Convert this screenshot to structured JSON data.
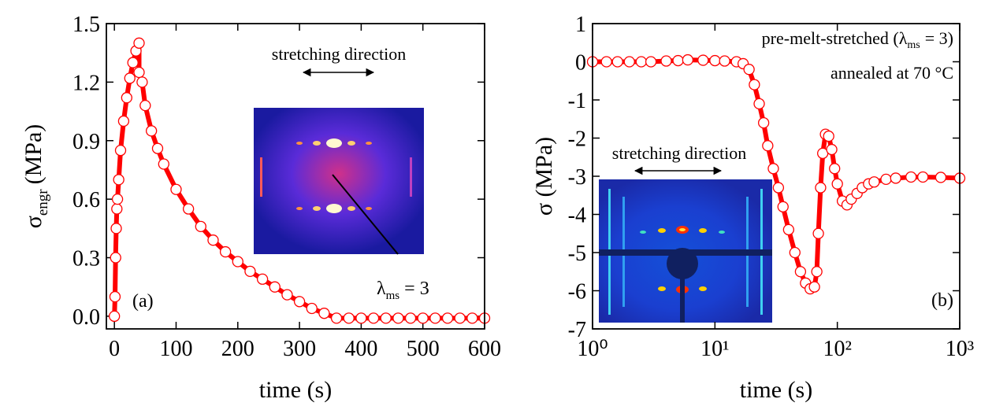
{
  "chart_data": [
    {
      "type": "scatter",
      "marker": "open-circle",
      "color": "#ff0000",
      "xlabel": "time (s)",
      "ylabel": {
        "symbol": "σ",
        "subscript": "engr",
        "unit": "(MPa)"
      },
      "panel_label": "(a)",
      "inset_label": "stretching direction",
      "note": {
        "symbol": "λ",
        "subscript": "ms",
        "text": "= 3"
      },
      "xlim": [
        -13,
        600
      ],
      "ylim": [
        -0.065,
        1.5
      ],
      "xticks": [
        0,
        100,
        200,
        300,
        400,
        500,
        600
      ],
      "yticks": [
        {
          "value": 0,
          "label": "0.0"
        },
        0.3,
        0.6,
        0.9,
        1.2,
        1.5
      ],
      "x": [
        0,
        1,
        2,
        3,
        4,
        5,
        7,
        10,
        15,
        20,
        25,
        30,
        35,
        40,
        40,
        45,
        50,
        60,
        70,
        80,
        100,
        120,
        140,
        160,
        180,
        200,
        220,
        240,
        260,
        280,
        300,
        320,
        340,
        360,
        380,
        400,
        420,
        440,
        460,
        480,
        500,
        520,
        540,
        560,
        580,
        600
      ],
      "values": [
        0,
        0.1,
        0.3,
        0.45,
        0.55,
        0.6,
        0.7,
        0.85,
        1.0,
        1.12,
        1.22,
        1.3,
        1.36,
        1.4,
        1.25,
        1.2,
        1.08,
        0.95,
        0.86,
        0.78,
        0.65,
        0.55,
        0.46,
        0.39,
        0.33,
        0.28,
        0.23,
        0.19,
        0.15,
        0.11,
        0.075,
        0.04,
        0.015,
        -0.01,
        -0.01,
        -0.01,
        -0.01,
        -0.01,
        -0.01,
        -0.01,
        -0.01,
        -0.01,
        -0.01,
        -0.01,
        -0.01,
        -0.01
      ]
    },
    {
      "type": "scatter",
      "marker": "open-circle",
      "color": "#ff0000",
      "xscale": "log",
      "xlabel": "time (s)",
      "ylabel": "σ (MPa)",
      "panel_label": "(b)",
      "inset_label": "stretching direction",
      "note_lines": [
        {
          "prefix": "pre-melt-stretched (λ",
          "subscript": "ms",
          "suffix": "= 3)"
        },
        "annealed at 70 °C"
      ],
      "xlim": [
        1,
        1000
      ],
      "ylim": [
        -7,
        1
      ],
      "xticks": [
        {
          "value": 1,
          "label": "10⁰"
        },
        {
          "value": 10,
          "label": "10¹"
        },
        {
          "value": 100,
          "label": "10²"
        },
        {
          "value": 1000,
          "label": "10³"
        }
      ],
      "yticks": [
        -7,
        -6,
        -5,
        -4,
        -3,
        -2,
        -1,
        0,
        1
      ],
      "x": [
        1,
        1.3,
        1.6,
        2,
        2.5,
        3,
        4,
        5,
        6,
        8,
        10,
        12,
        15,
        17,
        19,
        21,
        23,
        25,
        27,
        30,
        33,
        36,
        40,
        45,
        50,
        55,
        60,
        65,
        68,
        70,
        73,
        76,
        80,
        85,
        90,
        95,
        100,
        110,
        120,
        130,
        145,
        160,
        180,
        200,
        250,
        300,
        400,
        500,
        700,
        1000
      ],
      "values": [
        0,
        0,
        0,
        0,
        0,
        0,
        0.02,
        0.03,
        0.05,
        0.04,
        0.03,
        0.02,
        0,
        -0.05,
        -0.2,
        -0.6,
        -1.1,
        -1.6,
        -2.2,
        -2.8,
        -3.3,
        -3.8,
        -4.4,
        -5.0,
        -5.5,
        -5.8,
        -5.95,
        -5.9,
        -5.5,
        -4.5,
        -3.3,
        -2.4,
        -1.9,
        -1.95,
        -2.3,
        -2.8,
        -3.2,
        -3.65,
        -3.75,
        -3.6,
        -3.45,
        -3.3,
        -3.2,
        -3.15,
        -3.08,
        -3.05,
        -3.02,
        -3.02,
        -3.03,
        -3.05
      ]
    }
  ]
}
